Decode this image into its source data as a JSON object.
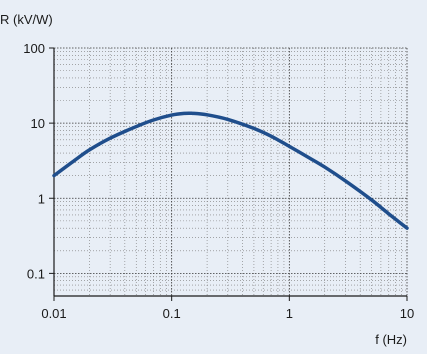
{
  "chart_data": {
    "type": "line",
    "title": "",
    "xlabel": "f (Hz)",
    "ylabel": "R (kV/W)",
    "x_scale": "log",
    "y_scale": "log",
    "xlim": [
      0.01,
      10
    ],
    "ylim": [
      0.05,
      100
    ],
    "x_ticks": [
      0.01,
      0.1,
      1,
      10
    ],
    "x_tick_labels": [
      "0.01",
      "0.1",
      "1",
      "10"
    ],
    "y_ticks": [
      0.1,
      1,
      10,
      100
    ],
    "y_tick_labels": [
      "0.1",
      "1",
      "10",
      "100"
    ],
    "grid": true,
    "line_color": "#1f4e8c",
    "background_color": "#e8eef6",
    "series": [
      {
        "x": [
          0.01,
          0.015,
          0.02,
          0.03,
          0.05,
          0.07,
          0.1,
          0.13,
          0.15,
          0.2,
          0.3,
          0.5,
          0.7,
          1,
          1.5,
          2,
          3,
          5,
          7,
          10
        ],
        "y": [
          2.0,
          3.2,
          4.4,
          6.3,
          9.0,
          11.0,
          12.8,
          13.5,
          13.5,
          12.9,
          11.2,
          8.5,
          6.7,
          4.9,
          3.4,
          2.6,
          1.7,
          0.95,
          0.62,
          0.4
        ]
      }
    ]
  }
}
